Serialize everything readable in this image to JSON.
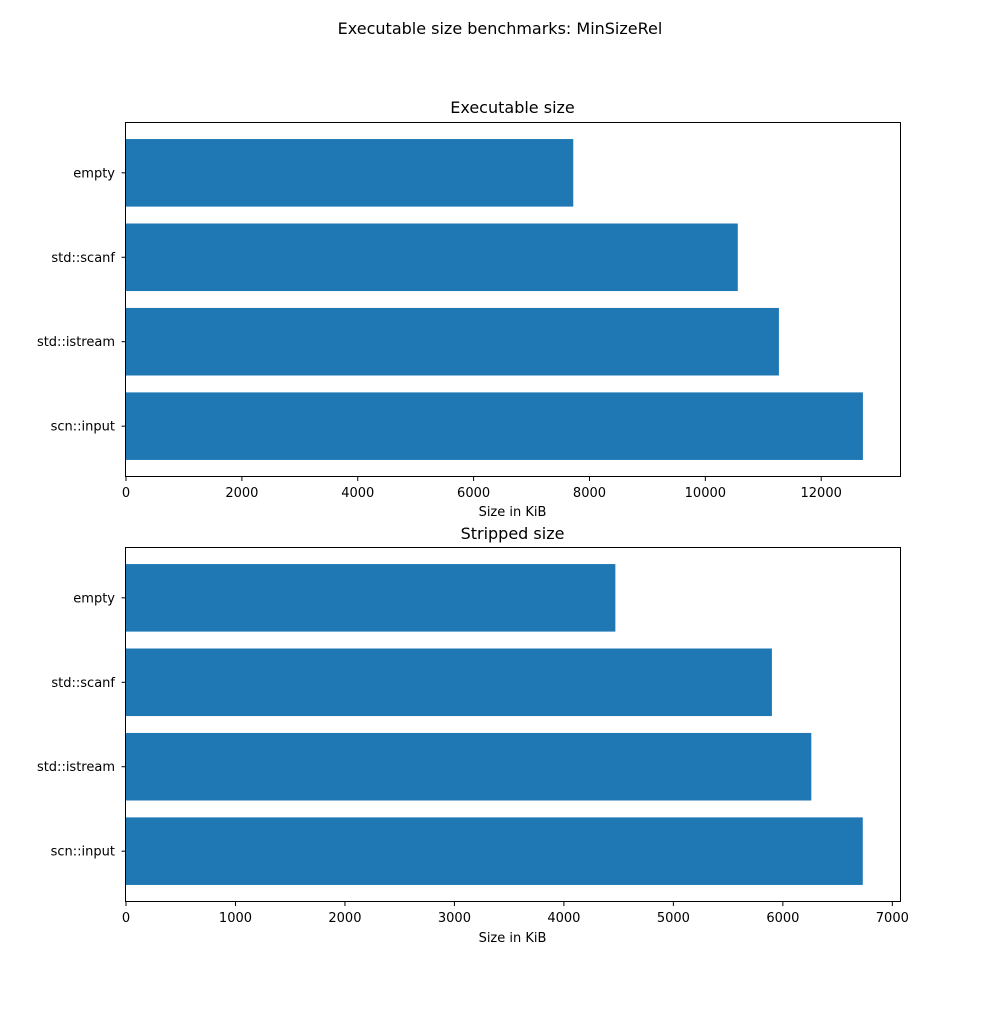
{
  "figure": {
    "suptitle": "Executable size benchmarks: MinSizeRel"
  },
  "colors": {
    "bar": "#1f77b4",
    "axis": "#000000",
    "background": "#ffffff"
  },
  "chart_data": [
    {
      "type": "bar",
      "orientation": "horizontal",
      "title": "Executable size",
      "xlabel": "Size in KiB",
      "ylabel": "",
      "categories": [
        "empty",
        "std::scanf",
        "std::istream",
        "scn::input"
      ],
      "values": [
        7720,
        10560,
        11270,
        12720
      ],
      "xlim": [
        0,
        13360
      ],
      "xticks": [
        0,
        2000,
        4000,
        6000,
        8000,
        10000,
        12000
      ],
      "grid": false,
      "legend": "none"
    },
    {
      "type": "bar",
      "orientation": "horizontal",
      "title": "Stripped size",
      "xlabel": "Size in KiB",
      "ylabel": "",
      "categories": [
        "empty",
        "std::scanf",
        "std::istream",
        "scn::input"
      ],
      "values": [
        4470,
        5900,
        6260,
        6730
      ],
      "xlim": [
        0,
        7070
      ],
      "xticks": [
        0,
        1000,
        2000,
        3000,
        4000,
        5000,
        6000,
        7000
      ],
      "grid": false,
      "legend": "none"
    }
  ]
}
